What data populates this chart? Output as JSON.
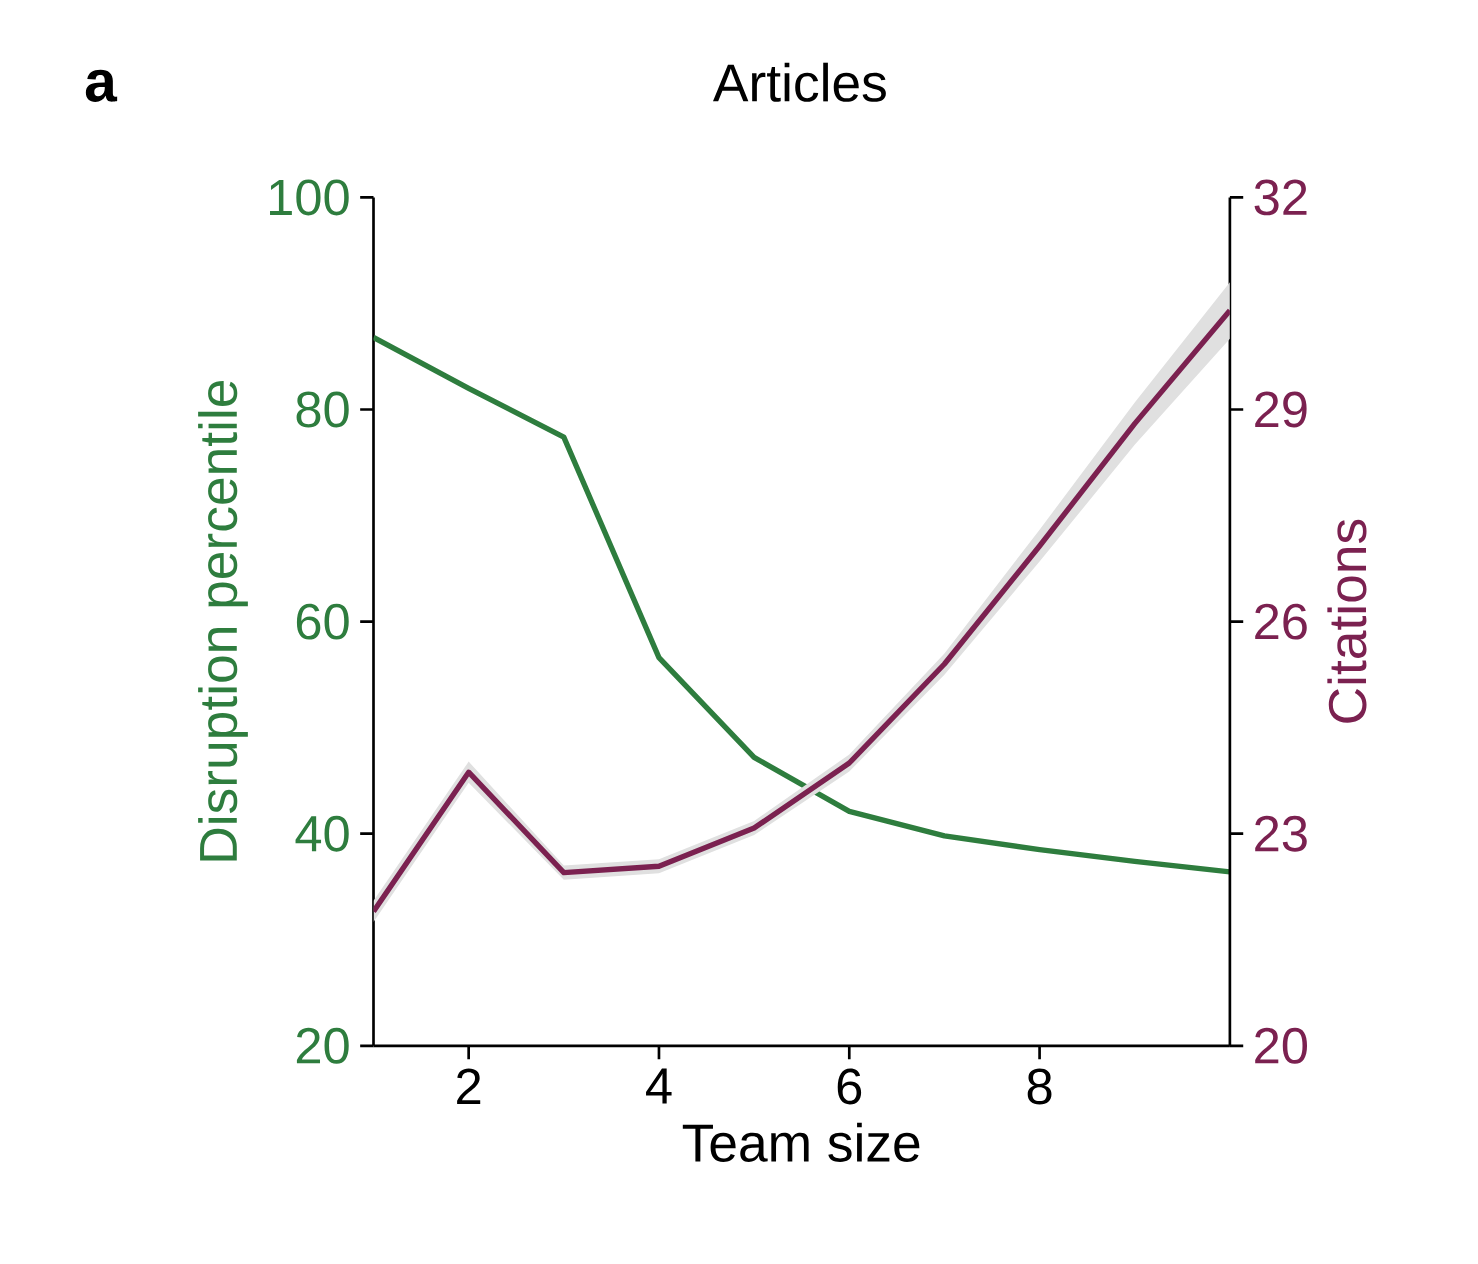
{
  "chart_data": {
    "type": "line",
    "title": "Articles",
    "xlabel": "Team size",
    "ylabel": "Disruption percentile",
    "y2label": "Citations",
    "annotations": [
      "a"
    ],
    "x": [
      1,
      2,
      3,
      4,
      5,
      6,
      7,
      8,
      9,
      10
    ],
    "xlim": [
      1,
      10
    ],
    "xticks": [
      2,
      4,
      6,
      8
    ],
    "ylim": [
      20,
      100
    ],
    "yticks": [
      20,
      40,
      60,
      80,
      100
    ],
    "y2lim": [
      20,
      32
    ],
    "y2ticks": [
      20,
      23,
      26,
      29,
      32
    ],
    "series": [
      {
        "color": "#2e7d3e",
        "values": [
          86.8,
          82,
          77.4,
          56.6,
          47.2,
          42.1,
          39.8,
          38.5,
          37.4,
          36.4
        ]
      },
      {
        "color": "#7b2150",
        "axis": "y2",
        "values": [
          21.9,
          23.87,
          22.45,
          22.54,
          23.08,
          24.0,
          25.4,
          27.07,
          28.8,
          30.4
        ],
        "lower": [
          21.75,
          23.72,
          22.35,
          22.44,
          22.98,
          23.88,
          25.25,
          26.85,
          28.5,
          30.0
        ],
        "upper": [
          22.05,
          24.02,
          22.55,
          22.64,
          23.18,
          24.12,
          25.55,
          27.3,
          29.1,
          30.8
        ]
      }
    ],
    "grid": false,
    "marker": "none",
    "line_style": "solid"
  }
}
